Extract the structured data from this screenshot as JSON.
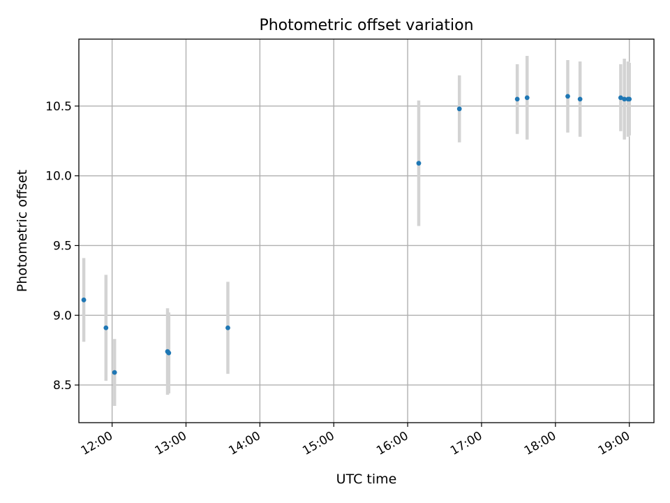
{
  "chart_data": {
    "type": "scatter",
    "title": "Photometric offset variation",
    "xlabel": "UTC time",
    "ylabel": "Photometric offset",
    "x_axis_type": "time",
    "xlim": [
      "11:33",
      "19:20"
    ],
    "ylim": [
      8.23,
      10.98
    ],
    "x_ticks": [
      "12:00",
      "13:00",
      "14:00",
      "15:00",
      "16:00",
      "17:00",
      "18:00",
      "19:00"
    ],
    "y_ticks": [
      8.5,
      9.0,
      9.5,
      10.0,
      10.5
    ],
    "y_tick_labels": [
      "8.5",
      "9.0",
      "9.5",
      "10.0",
      "10.5"
    ],
    "grid": true,
    "x_tick_rotation": "30deg",
    "colors": {
      "points": "#1f77b4",
      "error_bars": "#d3d3d3",
      "grid": "#b0b0b0"
    },
    "points": [
      {
        "time": "11:37",
        "value": 9.11,
        "err": 0.3
      },
      {
        "time": "11:55",
        "value": 8.91,
        "err": 0.38
      },
      {
        "time": "12:02",
        "value": 8.59,
        "err": 0.24
      },
      {
        "time": "12:45",
        "value": 8.74,
        "err": 0.31
      },
      {
        "time": "12:46",
        "value": 8.73,
        "err": 0.29
      },
      {
        "time": "13:34",
        "value": 8.91,
        "err": 0.33
      },
      {
        "time": "16:09",
        "value": 10.09,
        "err": 0.45
      },
      {
        "time": "16:42",
        "value": 10.48,
        "err": 0.24
      },
      {
        "time": "17:29",
        "value": 10.55,
        "err": 0.25
      },
      {
        "time": "17:37",
        "value": 10.56,
        "err": 0.3
      },
      {
        "time": "18:10",
        "value": 10.57,
        "err": 0.26
      },
      {
        "time": "18:20",
        "value": 10.55,
        "err": 0.27
      },
      {
        "time": "18:53",
        "value": 10.56,
        "err": 0.24
      },
      {
        "time": "18:56",
        "value": 10.55,
        "err": 0.29
      },
      {
        "time": "18:59",
        "value": 10.55,
        "err": 0.27
      },
      {
        "time": "19:00",
        "value": 10.55,
        "err": 0.26
      }
    ]
  }
}
